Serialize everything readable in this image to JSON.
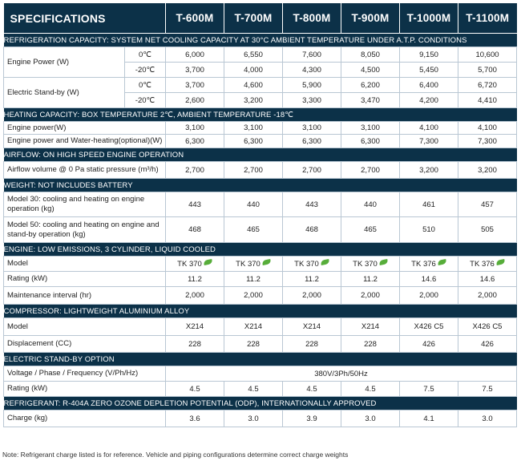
{
  "header": {
    "title": "SPECIFICATIONS",
    "models": [
      "T-600M",
      "T-700M",
      "T-800M",
      "T-900M",
      "T-1000M",
      "T-1100M"
    ]
  },
  "sections": {
    "refrigeration": "REFRIGERATION CAPACITY: SYSTEM NET COOLING CAPACITY AT 30°C AMBIENT TEMPERATURE UNDER A.T.P. CONDITIONS",
    "heating": "HEATING CAPACITY: BOX TEMPERATURE 2℃, AMBIENT TEMPERATURE -18℃",
    "airflow": "AIRFLOW: ON HIGH SPEED ENGINE OPERATION",
    "weight": "WEIGHT: NOT INCLUDES BATTERY",
    "engine": "ENGINE: LOW EMISSIONS, 3 CYLINDER, LIQUID COOLED",
    "compressor": "COMPRESSOR: LIGHTWEIGHT ALUMINIUM ALLOY",
    "standby": "ELECTRIC STAND-BY OPTION",
    "refrigerant": "REFRIGERANT: R-404A ZERO OZONE DEPLETION POTENTIAL (ODP), INTERNATIONALLY APPROVED"
  },
  "rows": {
    "engine_power": {
      "label": "Engine Power (W)",
      "sub": [
        "0℃",
        "-20℃"
      ],
      "values": [
        [
          "6,000",
          "6,550",
          "7,600",
          "8,050",
          "9,150",
          "10,600"
        ],
        [
          "3,700",
          "4,000",
          "4,300",
          "4,500",
          "5,450",
          "5,700"
        ]
      ]
    },
    "electric_standby": {
      "label": "Electric Stand-by (W)",
      "sub": [
        "0℃",
        "-20℃"
      ],
      "values": [
        [
          "3,700",
          "4,600",
          "5,900",
          "6,200",
          "6,400",
          "6,720"
        ],
        [
          "2,600",
          "3,200",
          "3,300",
          "3,470",
          "4,200",
          "4,410"
        ]
      ]
    },
    "heat_engine_power": {
      "label": "Engine power(W)",
      "values": [
        "3,100",
        "3,100",
        "3,100",
        "3,100",
        "4,100",
        "4,100"
      ]
    },
    "heat_water": {
      "label": "Engine power and Water-heating(optional)(W)",
      "values": [
        "6,300",
        "6,300",
        "6,300",
        "6,300",
        "7,300",
        "7,300"
      ]
    },
    "airflow": {
      "label": "Airflow volume @ 0 Pa static pressure (m³/h)",
      "values": [
        "2,700",
        "2,700",
        "2,700",
        "2,700",
        "3,200",
        "3,200"
      ]
    },
    "model30": {
      "label": "Model 30: cooling and heating on engine operation (kg)",
      "values": [
        "443",
        "440",
        "443",
        "440",
        "461",
        "457"
      ]
    },
    "model50": {
      "label": "Model 50: cooling and heating on engine and stand-by operation (kg)",
      "values": [
        "468",
        "465",
        "468",
        "465",
        "510",
        "505"
      ]
    },
    "engine_model": {
      "label": "Model",
      "values": [
        "TK 370",
        "TK 370",
        "TK 370",
        "TK 370",
        "TK 376",
        "TK 376"
      ]
    },
    "engine_rating": {
      "label": "Rating (kW)",
      "values": [
        "11.2",
        "11.2",
        "11.2",
        "11.2",
        "14.6",
        "14.6"
      ]
    },
    "maintenance": {
      "label": "Maintenance interval (hr)",
      "values": [
        "2,000",
        "2,000",
        "2,000",
        "2,000",
        "2,000",
        "2,000"
      ]
    },
    "comp_model": {
      "label": "Model",
      "values": [
        "X214",
        "X214",
        "X214",
        "X214",
        "X426 C5",
        "X426 C5"
      ]
    },
    "displacement": {
      "label": "Displacement (CC)",
      "values": [
        "228",
        "228",
        "228",
        "228",
        "426",
        "426"
      ]
    },
    "voltage": {
      "label": "Voltage / Phase / Frequency (V/Ph/Hz)",
      "value": "380V/3Ph/50Hz"
    },
    "standby_rating": {
      "label": "Rating (kW)",
      "values": [
        "4.5",
        "4.5",
        "4.5",
        "4.5",
        "7.5",
        "7.5"
      ]
    },
    "charge": {
      "label": "Charge (kg)",
      "values": [
        "3.6",
        "3.0",
        "3.9",
        "3.0",
        "4.1",
        "3.0"
      ]
    }
  },
  "icons": {
    "leaf": "eco-leaf-icon",
    "leaf_color": "#57ad3a"
  },
  "colors": {
    "header_bg": "#0c3148",
    "border": "#b9c7d3"
  },
  "note": "Note: Refrigerant charge listed is for reference. Vehicle and piping configurations determine correct charge weights"
}
